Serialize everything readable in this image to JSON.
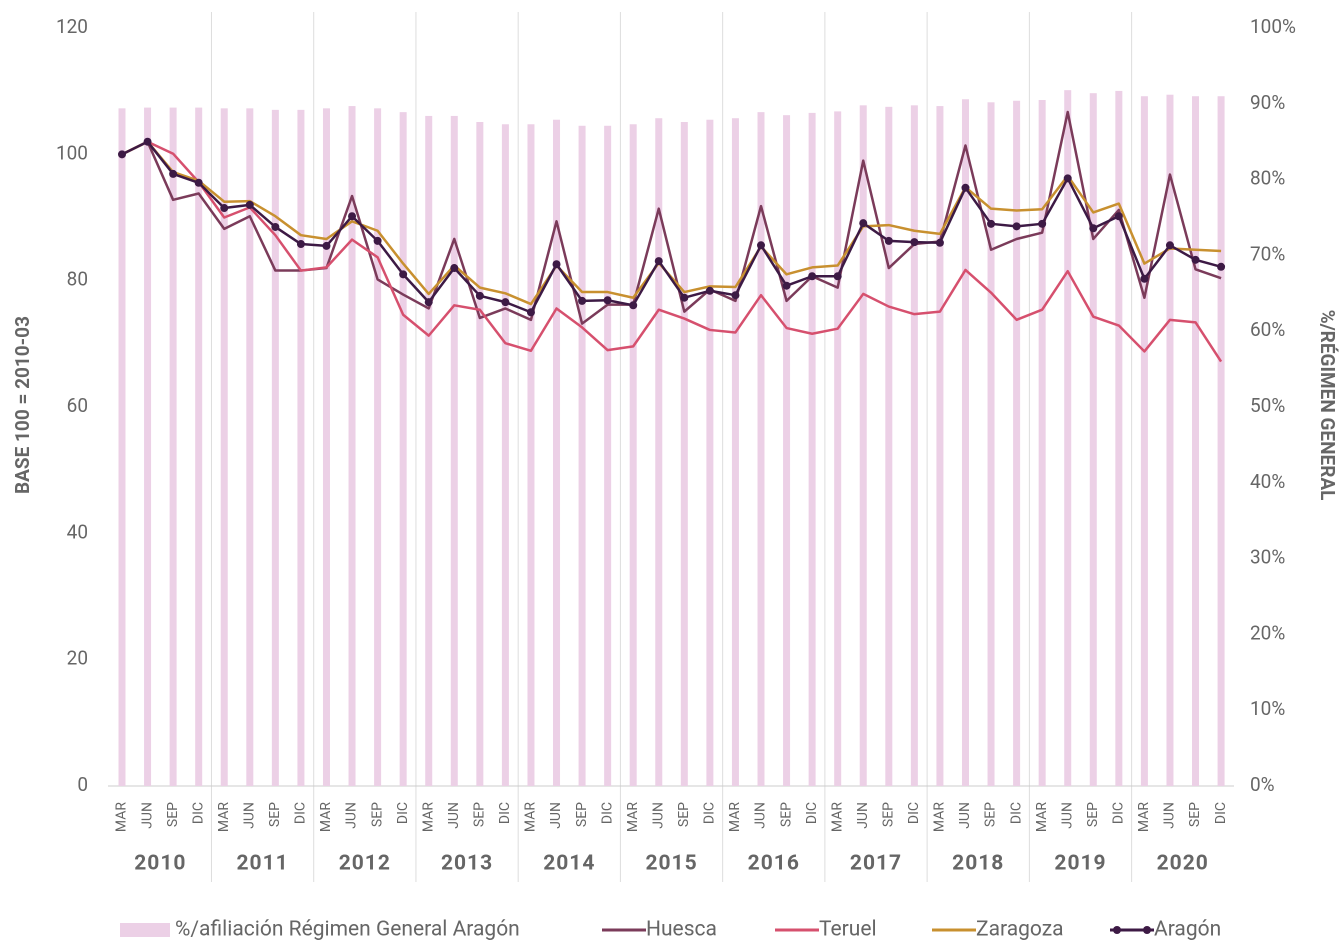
{
  "chart_data": {
    "type": "combo",
    "categories": [
      "MAR",
      "JUN",
      "SEP",
      "DIC",
      "MAR",
      "JUN",
      "SEP",
      "DIC",
      "MAR",
      "JUN",
      "SEP",
      "DIC",
      "MAR",
      "JUN",
      "SEP",
      "DIC",
      "MAR",
      "JUN",
      "SEP",
      "DIC",
      "MAR",
      "JUN",
      "SEP",
      "DIC",
      "MAR",
      "JUN",
      "SEP",
      "DIC",
      "MAR",
      "JUN",
      "SEP",
      "DIC",
      "MAR",
      "JUN",
      "SEP",
      "DIC",
      "MAR",
      "JUN",
      "SEP",
      "DIC",
      "MAR",
      "JUN",
      "SEP",
      "DIC"
    ],
    "years": [
      "2010",
      "2011",
      "2012",
      "2013",
      "2014",
      "2015",
      "2016",
      "2017",
      "2018",
      "2019",
      "2020"
    ],
    "ylabel": "BASE 100 = 2010-03",
    "y2label": "%/RÉGIMEN GENERAL",
    "ylim": [
      0,
      120
    ],
    "yticks": [
      0,
      20,
      40,
      60,
      80,
      100,
      120
    ],
    "y2lim": [
      0,
      100
    ],
    "y2ticks": [
      {
        "value": 0,
        "label": "0%"
      },
      {
        "value": 10,
        "label": "10%"
      },
      {
        "value": 20,
        "label": "20%"
      },
      {
        "value": 30,
        "label": "30%"
      },
      {
        "value": 40,
        "label": "40%"
      },
      {
        "value": 50,
        "label": "50%"
      },
      {
        "value": 60,
        "label": "60%"
      },
      {
        "value": 70,
        "label": "70%"
      },
      {
        "value": 80,
        "label": "80%"
      },
      {
        "value": 90,
        "label": "90%"
      },
      {
        "value": 100,
        "label": "100%"
      }
    ],
    "series": [
      {
        "name": "%/afiliación Régimen General Aragón",
        "kind": "bar",
        "axis": "y2",
        "color": "#ecd0e6",
        "values": [
          89.4,
          89.5,
          89.5,
          89.5,
          89.4,
          89.4,
          89.2,
          89.2,
          89.4,
          89.7,
          89.4,
          88.9,
          88.4,
          88.4,
          87.6,
          87.3,
          87.3,
          87.9,
          87.1,
          87.1,
          87.3,
          88.1,
          87.6,
          87.9,
          88.1,
          88.9,
          88.5,
          88.8,
          89.0,
          89.8,
          89.6,
          89.8,
          89.7,
          90.6,
          90.2,
          90.4,
          90.5,
          91.8,
          91.4,
          91.7,
          91.0,
          91.2,
          91.0,
          91.0
        ]
      },
      {
        "name": "Huesca",
        "kind": "line",
        "color": "#7b3b5a",
        "values": [
          100,
          102,
          92.8,
          93.8,
          88.2,
          90.2,
          81.6,
          81.6,
          82,
          93.4,
          80.2,
          77.8,
          75.6,
          86.6,
          74.1,
          75.6,
          73.8,
          89.4,
          73.2,
          76.2,
          76.2,
          91.4,
          75.1,
          78.6,
          76.8,
          91.8,
          76.8,
          80.7,
          78.9,
          99.0,
          82.0,
          85.8,
          86.2,
          101.4,
          84.9,
          86.6,
          87.6,
          106.7,
          86.6,
          91.2,
          77.3,
          96.8,
          81.8,
          80.4
        ]
      },
      {
        "name": "Teruel",
        "kind": "line",
        "color": "#d6506e",
        "values": [
          100,
          102,
          100.1,
          95.6,
          90.0,
          91.6,
          87.2,
          81.6,
          82.1,
          86.5,
          83.7,
          74.6,
          71.3,
          76.1,
          75.4,
          70.1,
          68.9,
          75.6,
          72.6,
          69.0,
          69.6,
          75.4,
          74.0,
          72.2,
          71.8,
          77.7,
          72.5,
          71.6,
          72.4,
          77.9,
          75.9,
          74.7,
          75.1,
          81.7,
          78.1,
          73.8,
          75.4,
          81.5,
          74.3,
          72.9,
          68.8,
          73.8,
          73.4,
          67.2
        ]
      },
      {
        "name": "Zaragoza",
        "kind": "line",
        "color": "#c8902f",
        "values": [
          100,
          102,
          97.2,
          95.8,
          92.5,
          92.6,
          90.2,
          87.2,
          86.6,
          89.4,
          87.9,
          82.7,
          77.9,
          82.4,
          78.9,
          78.0,
          76.3,
          82.4,
          78.2,
          78.2,
          77.3,
          82.8,
          78.2,
          79.1,
          79.0,
          85.4,
          81.0,
          82.1,
          82.4,
          88.6,
          88.8,
          87.9,
          87.4,
          94.8,
          91.4,
          91.1,
          91.3,
          96.6,
          90.8,
          92.2,
          82.7,
          85.1,
          84.9,
          84.7
        ]
      },
      {
        "name": "Aragón",
        "kind": "line",
        "marker": true,
        "color": "#3d1a45",
        "values": [
          100,
          102,
          96.9,
          95.5,
          91.5,
          92.0,
          88.5,
          85.8,
          85.5,
          90.2,
          86.3,
          81.0,
          76.6,
          82.0,
          77.6,
          76.6,
          75.0,
          82.6,
          76.8,
          76.9,
          76.1,
          83.1,
          77.3,
          78.4,
          77.7,
          85.6,
          79.2,
          80.7,
          80.7,
          89.1,
          86.3,
          86.1,
          86.0,
          94.7,
          89.0,
          88.6,
          89.0,
          96.2,
          88.3,
          90.2,
          80.3,
          85.6,
          83.3,
          82.2
        ]
      }
    ]
  }
}
